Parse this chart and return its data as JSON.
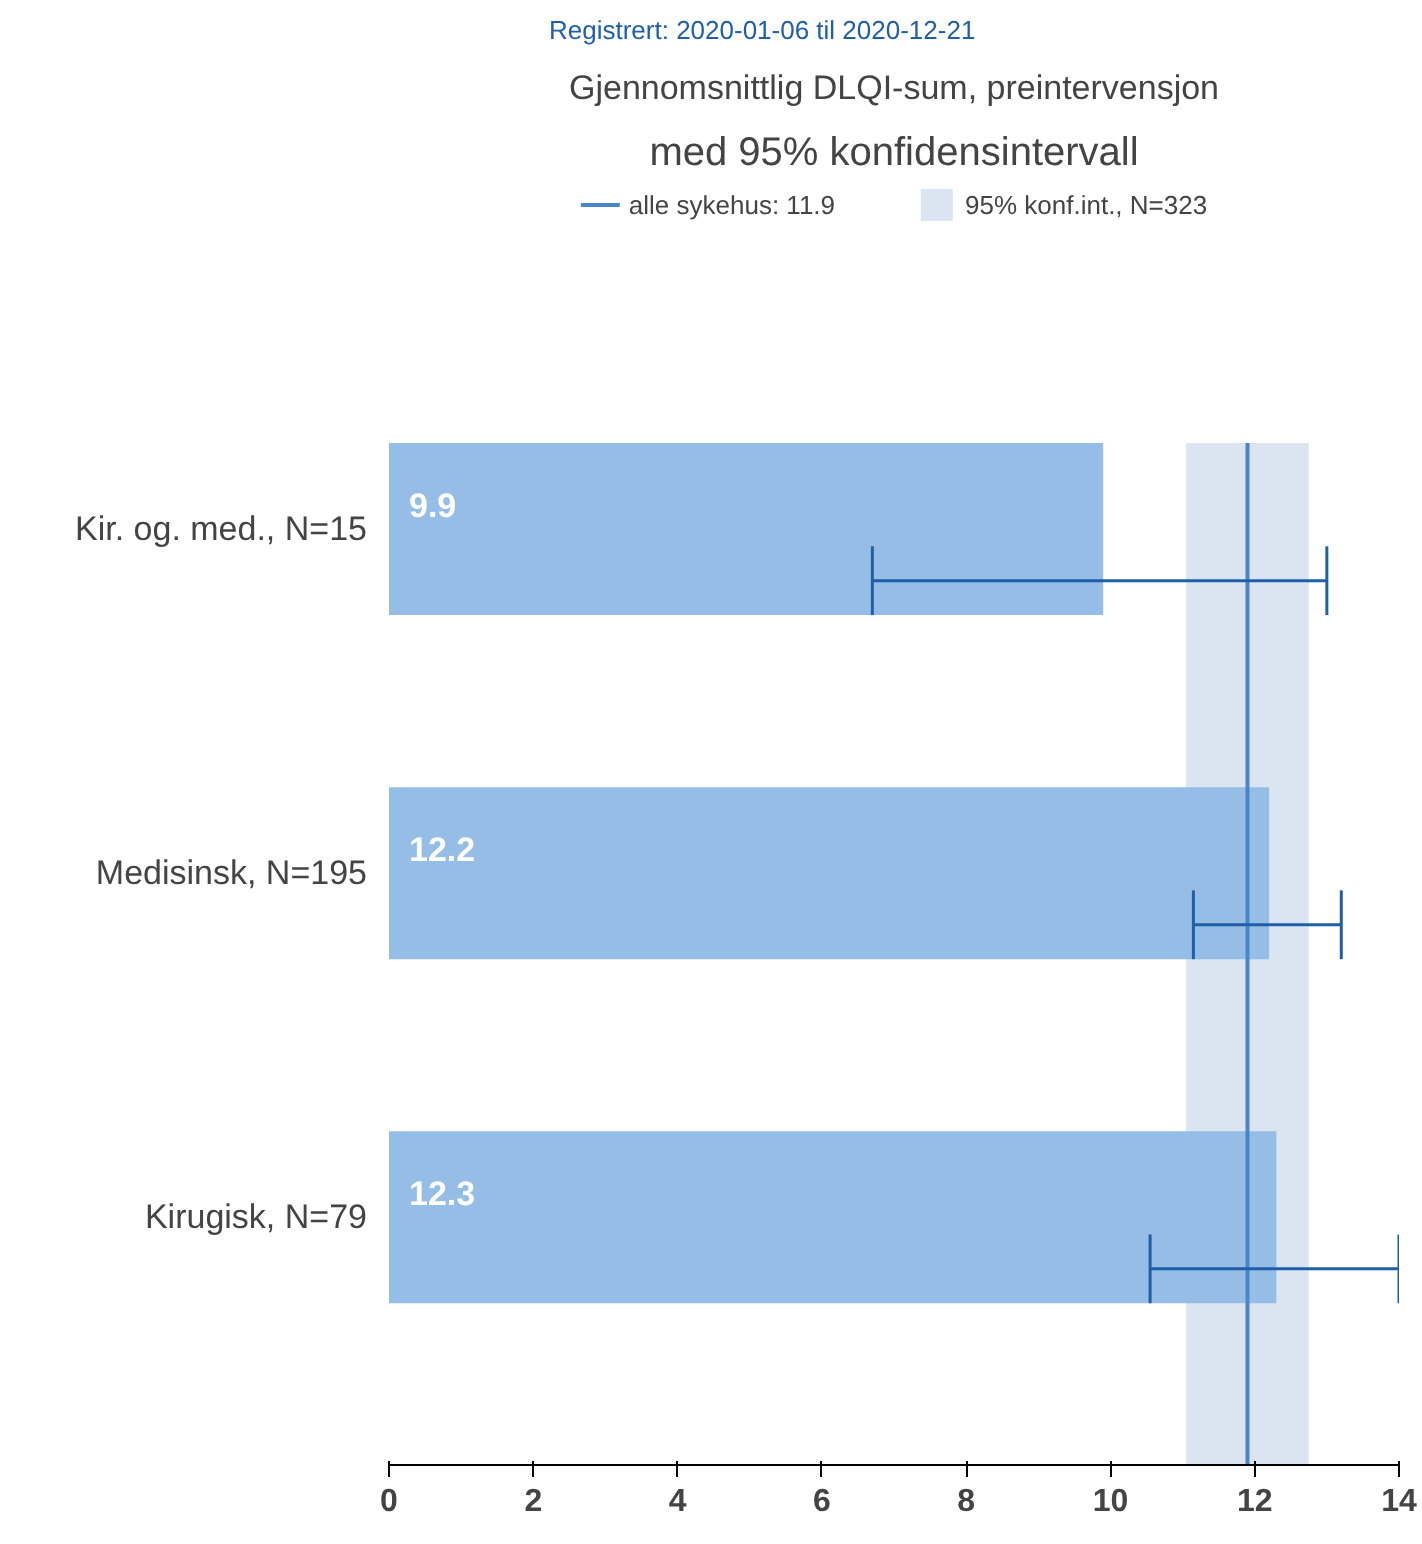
{
  "chart_data": {
    "type": "bar",
    "orientation": "horizontal",
    "title": "Gjennomsnittlig DLQI-sum, preintervensjon",
    "subtitle": "med 95% konfidensintervall",
    "annotations": [
      "Registrert: 2020-01-06 til 2020-12-21"
    ],
    "categories": [
      "Kir. og. med., N=15",
      "Medisinsk, N=195",
      "Kirugisk, N=79"
    ],
    "values": [
      9.9,
      12.2,
      12.3
    ],
    "color": "#95bde6",
    "errors": [
      [
        6.7,
        13.0
      ],
      [
        11.15,
        13.2
      ],
      [
        10.55,
        14.0
      ]
    ],
    "data_labels": true,
    "xlim": [
      0,
      14
    ],
    "xticks": [
      0,
      2,
      4,
      6,
      8,
      10,
      12,
      14
    ],
    "ref_lines": [
      {
        "axis": "x",
        "value": 11.9,
        "label": "alle sykehus: 11.9",
        "color": "#4a86c5"
      }
    ],
    "bands": [
      {
        "axis": "x",
        "from": 11.05,
        "to": 12.75,
        "label": "95% konf.int., N=323",
        "color": "#dbe5f1"
      }
    ],
    "grid": false,
    "legend": "top"
  }
}
